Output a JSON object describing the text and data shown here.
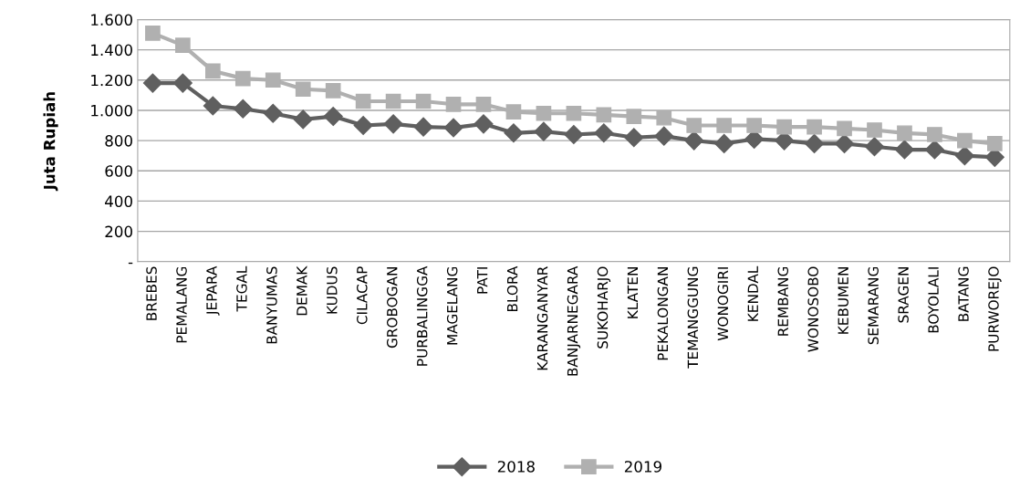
{
  "chart_data": {
    "type": "line",
    "ylabel": "Juta Rupiah",
    "categories": [
      "BREBES",
      "PEMALANG",
      "JEPARA",
      "TEGAL",
      "BANYUMAS",
      "DEMAK",
      "KUDUS",
      "CILACAP",
      "GROBOGAN",
      "PURBALINGGA",
      "MAGELANG",
      "PATI",
      "BLORA",
      "KARANGANYAR",
      "BANJARNEGARA",
      "SUKOHARJO",
      "KLATEN",
      "PEKALONGAN",
      "TEMANGGUNG",
      "WONOGIRI",
      "KENDAL",
      "REMBANG",
      "WONOSOBO",
      "KEBUMEN",
      "SEMARANG",
      "SRAGEN",
      "BOYOLALI",
      "BATANG",
      "PURWOREJO"
    ],
    "series": [
      {
        "name": "2018",
        "color": "#5f5f5f",
        "marker": "diamond",
        "values": [
          1180,
          1180,
          1030,
          1010,
          980,
          940,
          960,
          900,
          910,
          890,
          885,
          910,
          850,
          860,
          840,
          850,
          820,
          830,
          800,
          780,
          810,
          800,
          780,
          780,
          760,
          740,
          740,
          700,
          690
        ]
      },
      {
        "name": "2019",
        "color": "#b0b0b0",
        "marker": "square",
        "values": [
          1510,
          1430,
          1260,
          1210,
          1200,
          1140,
          1130,
          1060,
          1060,
          1060,
          1040,
          1040,
          990,
          980,
          980,
          970,
          960,
          950,
          900,
          900,
          900,
          890,
          890,
          880,
          870,
          850,
          840,
          800,
          780
        ]
      }
    ],
    "ylim": [
      0,
      1600
    ],
    "yticks": [
      {
        "value": 0,
        "label": "-"
      },
      {
        "value": 200,
        "label": "200"
      },
      {
        "value": 400,
        "label": "400"
      },
      {
        "value": 600,
        "label": "600"
      },
      {
        "value": 800,
        "label": "800"
      },
      {
        "value": 1000,
        "label": "1.000"
      },
      {
        "value": 1200,
        "label": "1.200"
      },
      {
        "value": 1400,
        "label": "1.400"
      },
      {
        "value": 1600,
        "label": "1.600"
      }
    ],
    "grid": "y",
    "legend": "bottom"
  }
}
